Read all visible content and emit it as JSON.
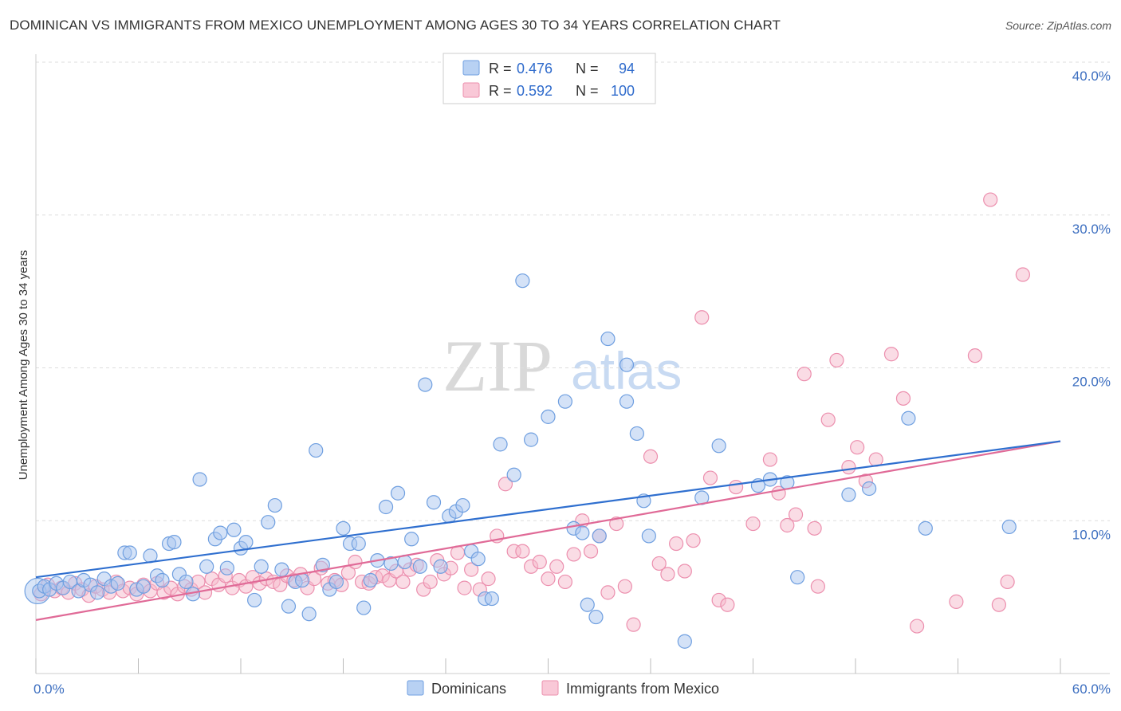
{
  "title": "DOMINICAN VS IMMIGRANTS FROM MEXICO UNEMPLOYMENT AMONG AGES 30 TO 34 YEARS CORRELATION CHART",
  "source": "Source: ZipAtlas.com",
  "watermark": {
    "zip": "ZIP",
    "atlas": "atlas"
  },
  "colors": {
    "dominicans_fill": "#a9c6f0",
    "dominicans_stroke": "#6f9fe0",
    "dominicans_line": "#2f6fcf",
    "mexico_fill": "#f6b9cb",
    "mexico_stroke": "#ec8fae",
    "mexico_line": "#e06a97",
    "tick_label": "#3d6fc0",
    "grid": "#dddddd"
  },
  "legend": {
    "rows": [
      {
        "r_label": "R =",
        "r_value": "0.476",
        "n_label": "N =",
        "n_value": "94"
      },
      {
        "r_label": "R =",
        "r_value": "0.592",
        "n_label": "N =",
        "n_value": "100"
      }
    ]
  },
  "chart_data": {
    "type": "scatter",
    "ylabel": "Unemployment Among Ages 30 to 34 years",
    "xlim": [
      0,
      60
    ],
    "ylim": [
      0,
      40
    ],
    "x_ticks": [
      "0.0%",
      "60.0%"
    ],
    "y_ticks": [
      {
        "value": 10,
        "label": "10.0%"
      },
      {
        "value": 20,
        "label": "20.0%"
      },
      {
        "value": 30,
        "label": "30.0%"
      },
      {
        "value": 40,
        "label": "40.0%"
      }
    ],
    "grid": "horizontal-dashed",
    "legend_position": "top-center",
    "series": [
      {
        "name": "Dominicans",
        "r": 0.476,
        "n": 94,
        "trend": {
          "x0": 0,
          "y0": 6.3,
          "x1": 60,
          "y1": 15.2
        },
        "points": [
          [
            0.2,
            5.4
          ],
          [
            0.5,
            5.7
          ],
          [
            0.8,
            5.5
          ],
          [
            1.2,
            5.9
          ],
          [
            1.6,
            5.6
          ],
          [
            2.0,
            6.0
          ],
          [
            2.5,
            5.4
          ],
          [
            2.8,
            6.1
          ],
          [
            3.2,
            5.8
          ],
          [
            3.6,
            5.3
          ],
          [
            4.0,
            6.2
          ],
          [
            4.4,
            5.7
          ],
          [
            4.8,
            5.9
          ],
          [
            5.2,
            7.9
          ],
          [
            5.5,
            7.9
          ],
          [
            5.9,
            5.5
          ],
          [
            6.3,
            5.7
          ],
          [
            6.7,
            7.7
          ],
          [
            7.1,
            6.4
          ],
          [
            7.4,
            6.1
          ],
          [
            7.8,
            8.5
          ],
          [
            8.1,
            8.6
          ],
          [
            8.4,
            6.5
          ],
          [
            8.8,
            6.0
          ],
          [
            9.2,
            5.2
          ],
          [
            9.6,
            12.7
          ],
          [
            10.0,
            7.0
          ],
          [
            10.5,
            8.8
          ],
          [
            10.8,
            9.2
          ],
          [
            11.2,
            6.9
          ],
          [
            11.6,
            9.4
          ],
          [
            12.0,
            8.2
          ],
          [
            12.3,
            8.6
          ],
          [
            12.8,
            4.8
          ],
          [
            13.2,
            7.0
          ],
          [
            13.6,
            9.9
          ],
          [
            14.0,
            11.0
          ],
          [
            14.4,
            6.8
          ],
          [
            14.8,
            4.4
          ],
          [
            15.2,
            6.0
          ],
          [
            15.6,
            6.1
          ],
          [
            16.0,
            3.9
          ],
          [
            16.4,
            14.6
          ],
          [
            16.8,
            7.1
          ],
          [
            17.2,
            5.5
          ],
          [
            17.6,
            6.0
          ],
          [
            18.0,
            9.5
          ],
          [
            18.4,
            8.5
          ],
          [
            18.9,
            8.5
          ],
          [
            19.2,
            4.3
          ],
          [
            19.6,
            6.1
          ],
          [
            20.0,
            7.4
          ],
          [
            20.5,
            10.9
          ],
          [
            20.8,
            7.2
          ],
          [
            21.2,
            11.8
          ],
          [
            21.6,
            7.3
          ],
          [
            22.0,
            8.8
          ],
          [
            22.5,
            7.0
          ],
          [
            22.8,
            18.9
          ],
          [
            23.3,
            11.2
          ],
          [
            23.7,
            7.0
          ],
          [
            24.2,
            10.3
          ],
          [
            24.6,
            10.6
          ],
          [
            25.0,
            11.0
          ],
          [
            25.5,
            8.0
          ],
          [
            25.9,
            7.5
          ],
          [
            26.3,
            4.9
          ],
          [
            26.7,
            4.9
          ],
          [
            27.2,
            15.0
          ],
          [
            28.0,
            13.0
          ],
          [
            28.5,
            25.7
          ],
          [
            29.0,
            15.3
          ],
          [
            30.0,
            16.8
          ],
          [
            31.0,
            17.8
          ],
          [
            31.5,
            9.5
          ],
          [
            32.0,
            9.2
          ],
          [
            32.3,
            4.5
          ],
          [
            32.8,
            3.7
          ],
          [
            33.0,
            9.0
          ],
          [
            33.5,
            21.9
          ],
          [
            34.6,
            20.2
          ],
          [
            34.6,
            17.8
          ],
          [
            35.2,
            15.7
          ],
          [
            35.6,
            11.3
          ],
          [
            35.9,
            9.0
          ],
          [
            38.0,
            2.1
          ],
          [
            39.0,
            11.5
          ],
          [
            40.0,
            14.9
          ],
          [
            42.3,
            12.3
          ],
          [
            43.0,
            12.7
          ],
          [
            44.0,
            12.5
          ],
          [
            44.6,
            6.3
          ],
          [
            47.6,
            11.7
          ],
          [
            48.8,
            12.1
          ],
          [
            51.1,
            16.7
          ],
          [
            52.1,
            9.5
          ],
          [
            57.0,
            9.6
          ]
        ]
      },
      {
        "name": "Immigrants from Mexico",
        "r": 0.592,
        "n": 100,
        "trend": {
          "x0": 0,
          "y0": 3.5,
          "x1": 60,
          "y1": 15.2
        },
        "points": [
          [
            0.3,
            5.2
          ],
          [
            0.7,
            5.8
          ],
          [
            1.1,
            5.4
          ],
          [
            1.5,
            5.6
          ],
          [
            1.9,
            5.3
          ],
          [
            2.3,
            5.9
          ],
          [
            2.7,
            5.5
          ],
          [
            3.1,
            5.1
          ],
          [
            3.5,
            5.7
          ],
          [
            3.9,
            5.5
          ],
          [
            4.3,
            5.3
          ],
          [
            4.7,
            6.0
          ],
          [
            5.1,
            5.4
          ],
          [
            5.5,
            5.6
          ],
          [
            5.9,
            5.2
          ],
          [
            6.3,
            5.8
          ],
          [
            6.7,
            5.4
          ],
          [
            7.1,
            5.9
          ],
          [
            7.5,
            5.3
          ],
          [
            7.9,
            5.6
          ],
          [
            8.3,
            5.2
          ],
          [
            8.7,
            5.7
          ],
          [
            9.1,
            5.5
          ],
          [
            9.5,
            6.0
          ],
          [
            9.9,
            5.3
          ],
          [
            10.3,
            6.2
          ],
          [
            10.7,
            5.8
          ],
          [
            11.1,
            6.4
          ],
          [
            11.5,
            5.6
          ],
          [
            11.9,
            6.1
          ],
          [
            12.3,
            5.7
          ],
          [
            12.7,
            6.3
          ],
          [
            13.1,
            5.9
          ],
          [
            13.5,
            6.2
          ],
          [
            13.9,
            6.0
          ],
          [
            14.3,
            5.8
          ],
          [
            14.7,
            6.4
          ],
          [
            15.1,
            6.1
          ],
          [
            15.5,
            6.5
          ],
          [
            15.9,
            5.6
          ],
          [
            16.3,
            6.2
          ],
          [
            16.7,
            6.9
          ],
          [
            17.1,
            5.9
          ],
          [
            17.5,
            6.1
          ],
          [
            17.9,
            5.8
          ],
          [
            18.3,
            6.6
          ],
          [
            18.7,
            7.3
          ],
          [
            19.1,
            6.0
          ],
          [
            19.5,
            5.9
          ],
          [
            19.9,
            6.3
          ],
          [
            20.3,
            6.4
          ],
          [
            20.7,
            6.1
          ],
          [
            21.1,
            6.7
          ],
          [
            21.5,
            6.0
          ],
          [
            21.9,
            6.8
          ],
          [
            22.3,
            7.1
          ],
          [
            22.7,
            5.5
          ],
          [
            23.1,
            6.0
          ],
          [
            23.5,
            7.4
          ],
          [
            23.9,
            6.5
          ],
          [
            24.3,
            6.9
          ],
          [
            24.7,
            7.9
          ],
          [
            25.1,
            5.6
          ],
          [
            25.5,
            6.8
          ],
          [
            26.0,
            5.5
          ],
          [
            26.5,
            6.2
          ],
          [
            27.0,
            9.0
          ],
          [
            27.5,
            12.4
          ],
          [
            28.0,
            8.0
          ],
          [
            28.5,
            8.0
          ],
          [
            29.0,
            7.0
          ],
          [
            29.5,
            7.3
          ],
          [
            30.0,
            6.2
          ],
          [
            30.5,
            7.0
          ],
          [
            31.0,
            6.0
          ],
          [
            31.5,
            7.8
          ],
          [
            32.0,
            10.0
          ],
          [
            32.5,
            8.0
          ],
          [
            33.0,
            9.0
          ],
          [
            33.5,
            5.3
          ],
          [
            34.0,
            9.8
          ],
          [
            34.5,
            5.7
          ],
          [
            35.0,
            3.2
          ],
          [
            36.0,
            14.2
          ],
          [
            36.5,
            7.2
          ],
          [
            37.0,
            6.5
          ],
          [
            37.5,
            8.5
          ],
          [
            38.0,
            6.7
          ],
          [
            38.5,
            8.7
          ],
          [
            39.0,
            23.3
          ],
          [
            39.5,
            12.8
          ],
          [
            40.0,
            4.8
          ],
          [
            40.5,
            4.5
          ],
          [
            41.0,
            12.2
          ],
          [
            42.0,
            9.8
          ],
          [
            43.0,
            14.0
          ],
          [
            43.5,
            11.8
          ],
          [
            44.0,
            9.7
          ],
          [
            44.5,
            10.4
          ],
          [
            45.0,
            19.6
          ]
        ]
      }
    ]
  },
  "extra_mexico_points": [
    [
      45.6,
      9.5
    ],
    [
      45.8,
      5.7
    ],
    [
      46.4,
      16.6
    ],
    [
      46.9,
      20.5
    ],
    [
      47.6,
      13.5
    ],
    [
      48.1,
      14.8
    ],
    [
      48.6,
      12.6
    ],
    [
      49.2,
      14.0
    ],
    [
      50.1,
      20.9
    ],
    [
      50.8,
      18.0
    ],
    [
      51.6,
      3.1
    ],
    [
      53.9,
      4.7
    ],
    [
      55.0,
      20.8
    ],
    [
      55.9,
      31.0
    ],
    [
      56.4,
      4.5
    ],
    [
      56.9,
      6.0
    ],
    [
      57.8,
      26.1
    ]
  ],
  "bottom_legend": [
    "Dominicans",
    "Immigrants from Mexico"
  ]
}
